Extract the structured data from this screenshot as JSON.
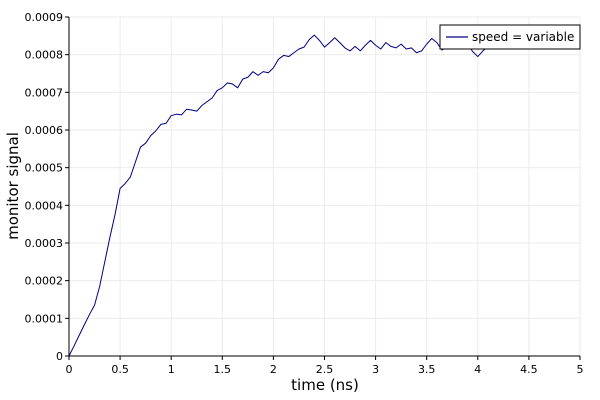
{
  "chart_data": {
    "type": "line",
    "title": "",
    "xlabel": "time (ns)",
    "ylabel": "monitor signal",
    "xlim": [
      0,
      5
    ],
    "ylim": [
      0,
      0.0009
    ],
    "x_ticks": [
      "0",
      "0.5",
      "1",
      "1.5",
      "2",
      "2.5",
      "3",
      "3.5",
      "4",
      "4.5",
      "5"
    ],
    "y_ticks": [
      "0",
      "0.0001",
      "0.0002",
      "0.0003",
      "0.0004",
      "0.0005",
      "0.0006",
      "0.0007",
      "0.0008",
      "0.0009"
    ],
    "grid": true,
    "legend_position": "top-right",
    "series": [
      {
        "name": "speed = variable",
        "color": "#000080",
        "x": [
          0,
          0.05,
          0.1,
          0.15,
          0.2,
          0.25,
          0.3,
          0.35,
          0.4,
          0.45,
          0.5,
          0.55,
          0.6,
          0.65,
          0.7,
          0.75,
          0.8,
          0.85,
          0.9,
          0.95,
          1.0,
          1.05,
          1.1,
          1.15,
          1.2,
          1.25,
          1.3,
          1.35,
          1.4,
          1.45,
          1.5,
          1.55,
          1.6,
          1.65,
          1.7,
          1.75,
          1.8,
          1.85,
          1.9,
          1.95,
          2.0,
          2.05,
          2.1,
          2.15,
          2.2,
          2.25,
          2.3,
          2.35,
          2.4,
          2.45,
          2.5,
          2.55,
          2.6,
          2.65,
          2.7,
          2.75,
          2.8,
          2.85,
          2.9,
          2.95,
          3.0,
          3.05,
          3.1,
          3.15,
          3.2,
          3.25,
          3.3,
          3.35,
          3.4,
          3.45,
          3.5,
          3.55,
          3.6,
          3.65,
          3.7,
          3.75,
          3.8,
          3.85,
          3.9,
          3.95,
          4.0,
          4.05,
          4.1,
          4.15,
          4.2
        ],
        "values": [
          0,
          2.7e-05,
          5.5e-05,
          8.3e-05,
          0.00011,
          0.000135,
          0.000185,
          0.00025,
          0.000315,
          0.000375,
          0.000445,
          0.000458,
          0.000475,
          0.000515,
          0.000555,
          0.000565,
          0.000585,
          0.000598,
          0.000615,
          0.000618,
          0.000638,
          0.000642,
          0.00064,
          0.000655,
          0.000653,
          0.00065,
          0.000665,
          0.000675,
          0.000685,
          0.000705,
          0.000712,
          0.000725,
          0.000722,
          0.000712,
          0.000735,
          0.00074,
          0.000755,
          0.000745,
          0.000755,
          0.000752,
          0.000765,
          0.000788,
          0.000798,
          0.000795,
          0.000805,
          0.000815,
          0.00082,
          0.00084,
          0.000852,
          0.000838,
          0.00082,
          0.000832,
          0.000845,
          0.000832,
          0.000818,
          0.00081,
          0.000822,
          0.00081,
          0.000825,
          0.000838,
          0.000825,
          0.000815,
          0.000832,
          0.000822,
          0.000818,
          0.000828,
          0.000815,
          0.000818,
          0.000805,
          0.00081,
          0.000828,
          0.000843,
          0.000832,
          0.000812,
          0.000822,
          0.000838,
          0.000825,
          0.000815,
          0.000828,
          0.000808,
          0.000795,
          0.00081,
          0.000822,
          0.000835,
          0.00083
        ]
      }
    ]
  }
}
